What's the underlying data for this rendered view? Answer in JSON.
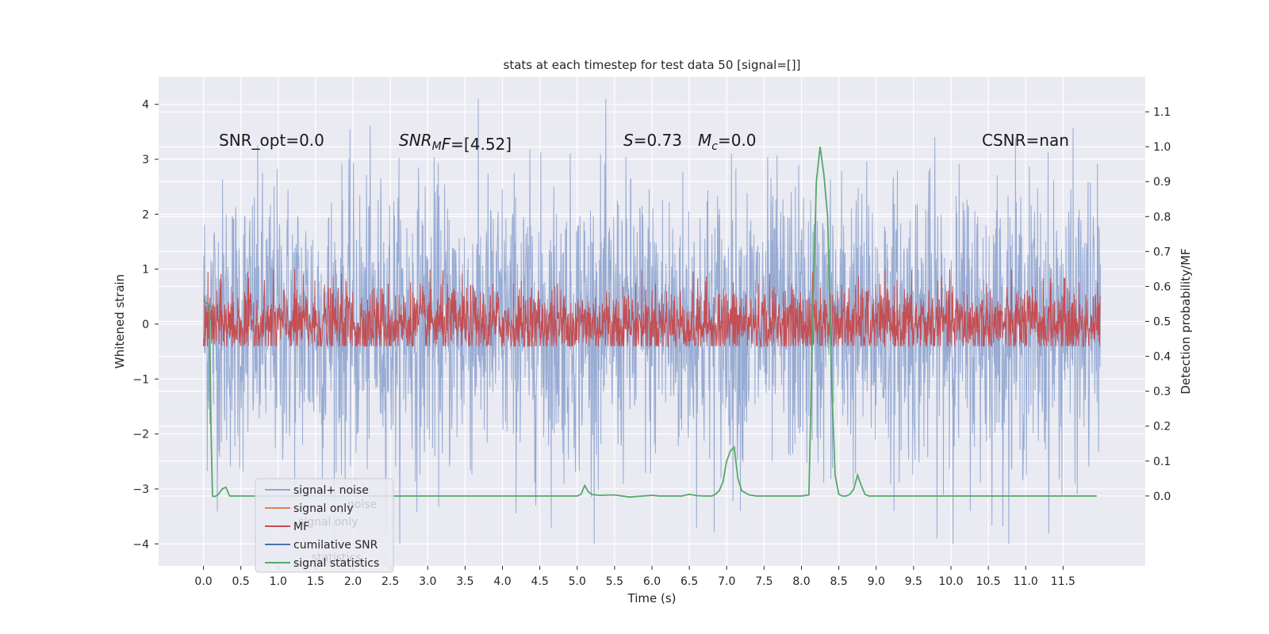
{
  "chart_data": {
    "type": "line",
    "title": "stats at each timestep for test data 50 [signal=[]]",
    "xlabel": "Time (s)",
    "ylabel_left": "Whitened strain",
    "ylabel_right": "Detection probability/MF",
    "xlim": [
      -0.6,
      12.6
    ],
    "ylim_left": [
      -4.4,
      4.5
    ],
    "ylim_right": [
      -0.2,
      1.2
    ],
    "x_ticks": [
      "0.0",
      "0.5",
      "1.0",
      "1.5",
      "2.0",
      "2.5",
      "3.0",
      "3.5",
      "4.0",
      "4.5",
      "5.0",
      "5.5",
      "6.0",
      "6.5",
      "7.0",
      "7.5",
      "8.0",
      "8.5",
      "9.0",
      "9.5",
      "10.0",
      "10.5",
      "11.0",
      "11.5"
    ],
    "y_ticks_left": [
      "4",
      "3",
      "2",
      "1",
      "0",
      "−1",
      "−2",
      "−3",
      "−4"
    ],
    "y_ticks_right": [
      "1.1",
      "1.0",
      "0.9",
      "0.8",
      "0.7",
      "0.6",
      "0.5",
      "0.4",
      "0.3",
      "0.2",
      "0.1",
      "0.0"
    ],
    "grid": true,
    "annotations": [
      {
        "text": "SNR_opt=0.0"
      },
      {
        "text_main": "SNR",
        "text_sub": "M",
        "text_tail": "F=[4.52]"
      },
      {
        "text_main": "S",
        "text_tail": "=0.73"
      },
      {
        "text_main": "M",
        "text_sub": "c",
        "text_tail": "=0.0"
      },
      {
        "text": "CSNR=nan"
      }
    ],
    "legend": {
      "placement": "lower-left",
      "entries": [
        "signal+ noise",
        "signal only",
        "MF",
        "cumilative SNR",
        "signal statistics"
      ],
      "ghost_entries": [
        "noise",
        "signal only",
        "statistics"
      ]
    },
    "series": [
      {
        "name": "signal+ noise",
        "color": "#92a8d1",
        "axis": "left",
        "x_range": [
          0,
          12
        ],
        "y_range": [
          -4.0,
          4.1
        ],
        "typical_amplitude": 1.3
      },
      {
        "name": "signal only",
        "color": "#dd8452",
        "axis": "left",
        "values": []
      },
      {
        "name": "MF",
        "color": "#c44e52",
        "axis": "left",
        "x_range": [
          0,
          12
        ],
        "y_range": [
          -0.4,
          1.0
        ],
        "typical_amplitude": 0.35
      },
      {
        "name": "cumilative SNR",
        "color": "#4c72b0",
        "axis": "right",
        "values": []
      },
      {
        "name": "signal statistics",
        "color": "#55a868",
        "axis": "right",
        "x": [
          0.0,
          0.05,
          0.08,
          0.1,
          0.12,
          0.15,
          0.2,
          0.25,
          0.3,
          0.35,
          1.0,
          2.0,
          3.0,
          4.0,
          5.0,
          5.05,
          5.1,
          5.15,
          5.2,
          5.3,
          5.5,
          5.7,
          6.0,
          6.1,
          6.4,
          6.5,
          6.6,
          6.7,
          6.8,
          6.85,
          6.9,
          6.95,
          7.0,
          7.05,
          7.1,
          7.15,
          7.2,
          7.3,
          7.4,
          7.5,
          8.0,
          8.1,
          8.15,
          8.2,
          8.25,
          8.3,
          8.35,
          8.4,
          8.45,
          8.5,
          8.55,
          8.6,
          8.65,
          8.7,
          8.75,
          8.8,
          8.85,
          8.9,
          9.0,
          9.5,
          10.0,
          11.0,
          11.5,
          11.95
        ],
        "y": [
          0.56,
          0.55,
          0.54,
          0.2,
          0.0,
          -0.002,
          0.005,
          0.02,
          0.025,
          0.0,
          0.0,
          0.0,
          0.0,
          0.0,
          0.0,
          0.005,
          0.03,
          0.012,
          0.004,
          0.002,
          0.003,
          -0.003,
          0.002,
          0.0,
          0.0,
          0.005,
          0.001,
          0.0,
          0.0,
          0.005,
          0.015,
          0.04,
          0.1,
          0.13,
          0.14,
          0.05,
          0.015,
          0.003,
          0.0,
          0.0,
          0.0,
          0.003,
          0.5,
          0.9,
          1.0,
          0.92,
          0.8,
          0.35,
          0.06,
          0.005,
          0.0,
          0.0,
          0.005,
          0.02,
          0.06,
          0.03,
          0.005,
          0.0,
          0.0,
          0.0,
          0.0,
          0.0,
          0.0,
          0.0
        ]
      }
    ]
  }
}
